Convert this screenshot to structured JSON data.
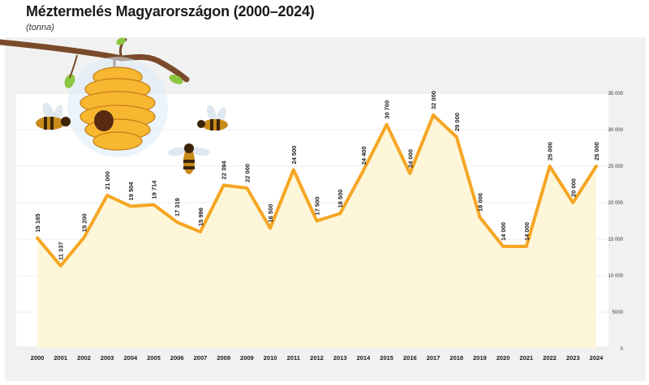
{
  "header": {
    "title": "Méztermelés Magyarországon (2000–2024)",
    "subtitle": "(tonna)"
  },
  "colors": {
    "line": "#f5a623",
    "fill": "#fdf6d8",
    "panel": "#f1f1f1",
    "grid": "#e6e6e6",
    "hive": "#f7b731",
    "branch": "#7a4a2a",
    "leaf": "#8cc63f"
  },
  "chart_data": {
    "type": "area",
    "title": "Méztermelés Magyarországon (2000–2024)",
    "subtitle": "(tonna)",
    "xlabel": "",
    "ylabel": "",
    "ylim": [
      0,
      35000
    ],
    "grid": true,
    "legend": "none",
    "y_ticks": [
      "0",
      "5000",
      "10 000",
      "15 000",
      "20 000",
      "25 000",
      "30 000",
      "35 000"
    ],
    "categories": [
      "2000",
      "2001",
      "2002",
      "2003",
      "2004",
      "2005",
      "2006",
      "2007",
      "2008",
      "2009",
      "2010",
      "2011",
      "2012",
      "2013",
      "2014",
      "2015",
      "2016",
      "2017",
      "2018",
      "2019",
      "2020",
      "2021",
      "2022",
      "2023",
      "2024"
    ],
    "values": [
      15165,
      11337,
      15200,
      21000,
      19504,
      19714,
      17319,
      15996,
      22394,
      22000,
      16500,
      24500,
      17500,
      18500,
      24400,
      30700,
      24000,
      32000,
      29000,
      18000,
      14000,
      14000,
      25000,
      20000,
      25000
    ],
    "labels": [
      "15 165",
      "11 337",
      "15 200",
      "21 000",
      "19 504",
      "19 714",
      "17 319",
      "15 996",
      "22 394",
      "22 000",
      "16 500",
      "24 500",
      "17 500",
      "18 500",
      "24 400",
      "30 700",
      "24 000",
      "32 000",
      "29 000",
      "18 000",
      "14 000",
      "14 000",
      "25 000",
      "20 000",
      "25 000"
    ]
  },
  "decoration": {
    "icons": [
      "branch-icon",
      "beehive-icon",
      "bee-icon"
    ]
  }
}
